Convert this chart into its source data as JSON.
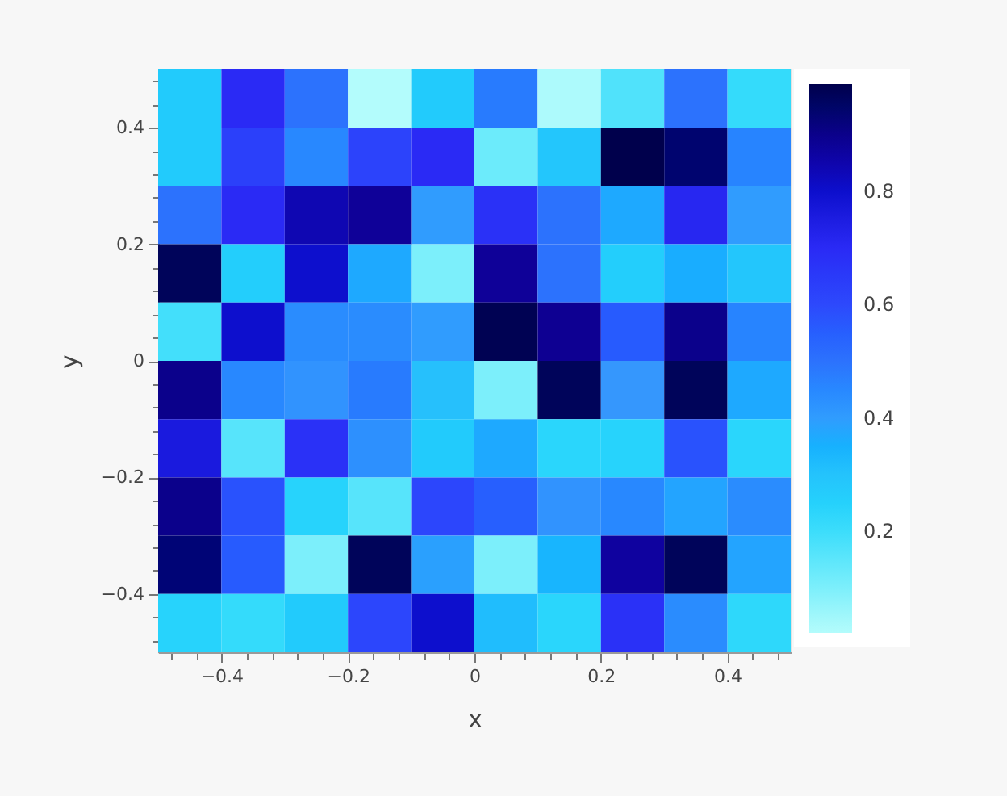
{
  "chart_data": {
    "type": "heatmap",
    "xlabel": "x",
    "ylabel": "y",
    "cells": [
      [
        0.27,
        0.7,
        0.5,
        0.02,
        0.27,
        0.48,
        0.03,
        0.17,
        0.5,
        0.21
      ],
      [
        0.27,
        0.63,
        0.45,
        0.62,
        0.7,
        0.12,
        0.29,
        0.99,
        0.94,
        0.46
      ],
      [
        0.5,
        0.7,
        0.84,
        0.88,
        0.4,
        0.68,
        0.5,
        0.37,
        0.71,
        0.4
      ],
      [
        0.97,
        0.26,
        0.8,
        0.37,
        0.1,
        0.88,
        0.5,
        0.26,
        0.36,
        0.29
      ],
      [
        0.19,
        0.8,
        0.44,
        0.44,
        0.4,
        0.98,
        0.89,
        0.56,
        0.9,
        0.46
      ],
      [
        0.9,
        0.45,
        0.42,
        0.48,
        0.31,
        0.1,
        0.97,
        0.41,
        0.97,
        0.37
      ],
      [
        0.76,
        0.16,
        0.68,
        0.43,
        0.27,
        0.37,
        0.23,
        0.24,
        0.58,
        0.23
      ],
      [
        0.9,
        0.58,
        0.24,
        0.16,
        0.61,
        0.55,
        0.42,
        0.45,
        0.38,
        0.44
      ],
      [
        0.93,
        0.56,
        0.1,
        0.97,
        0.39,
        0.1,
        0.34,
        0.87,
        0.97,
        0.38
      ],
      [
        0.24,
        0.21,
        0.27,
        0.61,
        0.8,
        0.32,
        0.23,
        0.68,
        0.44,
        0.22
      ]
    ],
    "xlim": [
      -0.5,
      0.5
    ],
    "ylim": [
      -0.5,
      0.5
    ],
    "xticks": [
      {
        "value": -0.48,
        "label": null
      },
      {
        "value": -0.44,
        "label": null
      },
      {
        "value": -0.4,
        "label": "−0.4"
      },
      {
        "value": -0.36,
        "label": null
      },
      {
        "value": -0.32,
        "label": null
      },
      {
        "value": -0.28,
        "label": null
      },
      {
        "value": -0.24,
        "label": null
      },
      {
        "value": -0.2,
        "label": "−0.2"
      },
      {
        "value": -0.16,
        "label": null
      },
      {
        "value": -0.12,
        "label": null
      },
      {
        "value": -0.08,
        "label": null
      },
      {
        "value": -0.04,
        "label": null
      },
      0,
      {
        "value": 0.04,
        "label": null
      },
      {
        "value": 0.08,
        "label": null
      },
      {
        "value": 0.12,
        "label": null
      },
      {
        "value": 0.16,
        "label": null
      },
      0.2,
      {
        "value": 0.24,
        "label": null
      },
      {
        "value": 0.28,
        "label": null
      },
      {
        "value": 0.32,
        "label": null
      },
      {
        "value": 0.36,
        "label": null
      },
      0.4,
      {
        "value": 0.44,
        "label": null
      },
      {
        "value": 0.48,
        "label": null
      }
    ],
    "yticks": [
      {
        "value": -0.48,
        "label": null
      },
      {
        "value": -0.44,
        "label": null
      },
      {
        "value": -0.4,
        "label": "−0.4"
      },
      {
        "value": -0.36,
        "label": null
      },
      {
        "value": -0.32,
        "label": null
      },
      {
        "value": -0.28,
        "label": null
      },
      {
        "value": -0.24,
        "label": null
      },
      {
        "value": -0.2,
        "label": "−0.2"
      },
      {
        "value": -0.16,
        "label": null
      },
      {
        "value": -0.12,
        "label": null
      },
      {
        "value": -0.08,
        "label": null
      },
      {
        "value": -0.04,
        "label": null
      },
      0,
      {
        "value": 0.04,
        "label": null
      },
      {
        "value": 0.08,
        "label": null
      },
      {
        "value": 0.12,
        "label": null
      },
      {
        "value": 0.16,
        "label": null
      },
      0.2,
      {
        "value": 0.24,
        "label": null
      },
      {
        "value": 0.28,
        "label": null
      },
      {
        "value": 0.32,
        "label": null
      },
      {
        "value": 0.36,
        "label": null
      },
      0.4,
      {
        "value": 0.44,
        "label": null
      },
      {
        "value": 0.48,
        "label": null
      }
    ],
    "clim": [
      0.02,
      0.99
    ],
    "cticks": [
      0.2,
      0.4,
      0.6,
      0.8
    ]
  }
}
